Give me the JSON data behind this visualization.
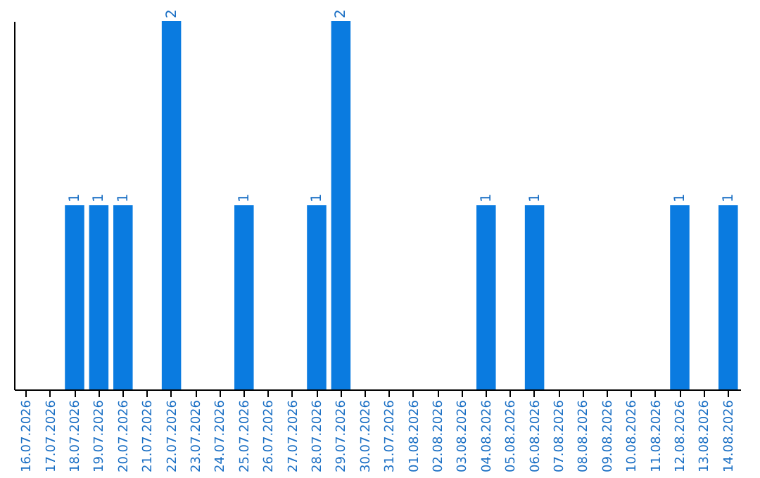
{
  "chart_data": {
    "type": "bar",
    "categories": [
      "16.07.2026",
      "17.07.2026",
      "18.07.2026",
      "19.07.2026",
      "20.07.2026",
      "21.07.2026",
      "22.07.2026",
      "23.07.2026",
      "24.07.2026",
      "25.07.2026",
      "26.07.2026",
      "27.07.2026",
      "28.07.2026",
      "29.07.2026",
      "30.07.2026",
      "31.07.2026",
      "01.08.2026",
      "02.08.2026",
      "03.08.2026",
      "04.08.2026",
      "05.08.2026",
      "06.08.2026",
      "07.08.2026",
      "08.08.2026",
      "09.08.2026",
      "10.08.2026",
      "11.08.2026",
      "12.08.2026",
      "13.08.2026",
      "14.08.2026"
    ],
    "values": [
      0,
      0,
      1,
      1,
      1,
      0,
      2,
      0,
      0,
      1,
      0,
      0,
      1,
      2,
      0,
      0,
      0,
      0,
      0,
      1,
      0,
      1,
      0,
      0,
      0,
      0,
      0,
      1,
      0,
      1
    ],
    "value_labels": [
      null,
      null,
      "1",
      "1",
      "1",
      null,
      "2",
      null,
      null,
      "1",
      null,
      null,
      "1",
      "2",
      null,
      null,
      null,
      null,
      null,
      "1",
      null,
      "1",
      null,
      null,
      null,
      null,
      null,
      "1",
      null,
      "1"
    ],
    "color": "#0a7be0",
    "ylim": [
      0,
      2
    ],
    "tick_labels": "x",
    "grid": false
  }
}
